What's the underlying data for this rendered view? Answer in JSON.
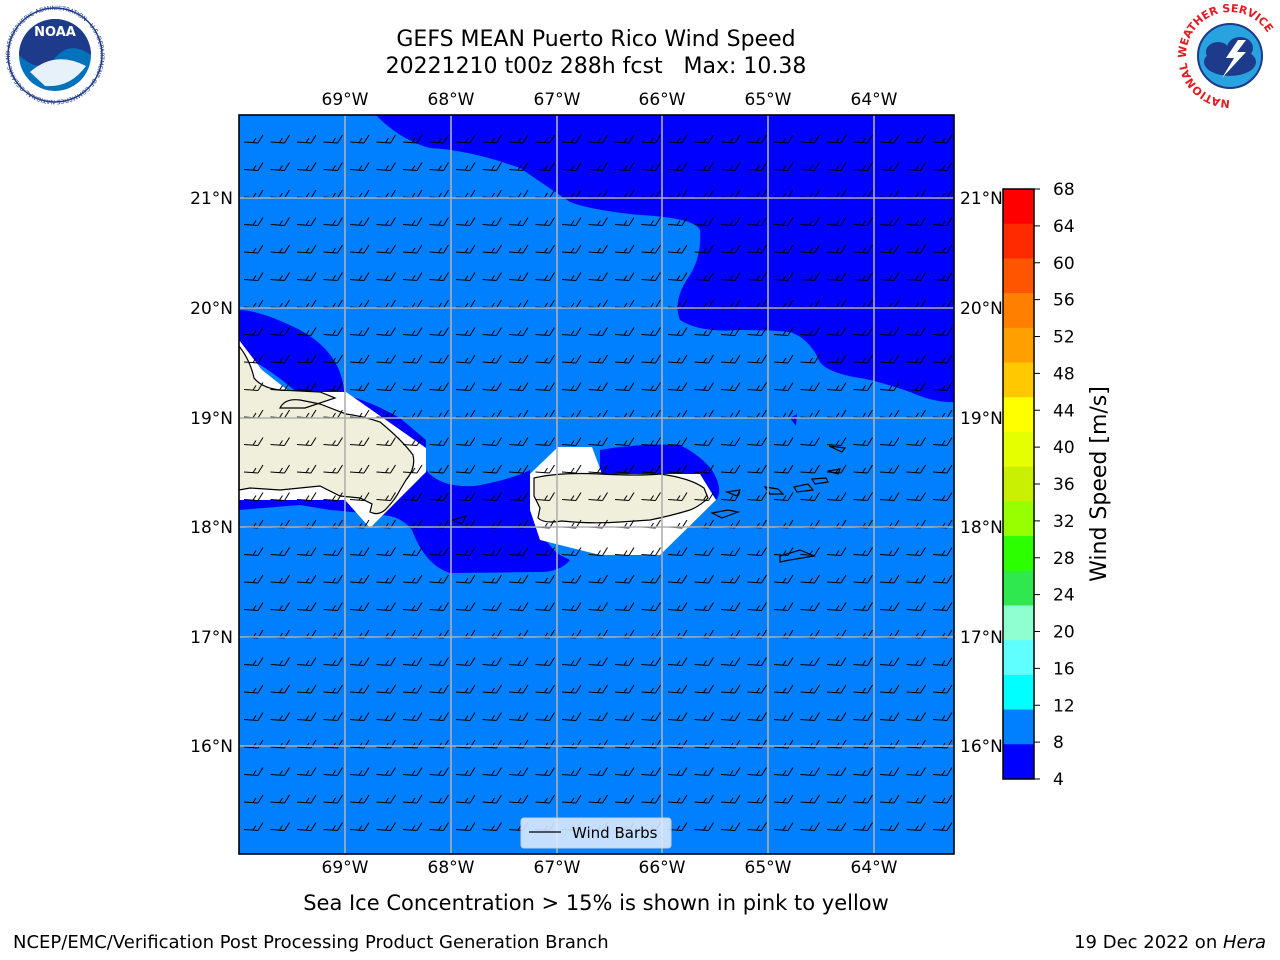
{
  "title": {
    "line1": "GEFS MEAN Puerto Rico Wind Speed",
    "line2": "20221210 t00z 288h fcst   Max: 10.38"
  },
  "map": {
    "lon_ticks": [
      "69°W",
      "68°W",
      "67°W",
      "66°W",
      "65°W",
      "64°W"
    ],
    "lat_ticks_left": [
      "21°N",
      "20°N",
      "19°N",
      "18°N",
      "17°N",
      "16°N"
    ],
    "lat_ticks_right": [
      "21°N",
      "20°N",
      "19°N",
      "18°N",
      "17°N",
      "16°N"
    ],
    "legend_label": "Wind Barbs",
    "colors": {
      "ocean_8_12": "#0080ff",
      "wind_4_8": "#0000ff",
      "land": "#efefdc",
      "grid": "#b0b0b0"
    }
  },
  "colorbar": {
    "label": "Wind Speed [m/s]",
    "ticks": [
      "68",
      "64",
      "60",
      "56",
      "52",
      "48",
      "44",
      "40",
      "36",
      "32",
      "28",
      "24",
      "20",
      "16",
      "12",
      "8",
      "4"
    ],
    "colors_top_to_bottom": [
      "#ff0000",
      "#ff2a00",
      "#ff5500",
      "#ff7f00",
      "#ffa000",
      "#ffc800",
      "#ffff00",
      "#e6ff00",
      "#c8f000",
      "#96ff00",
      "#2cff00",
      "#2ee84e",
      "#90ffd0",
      "#60ffff",
      "#00ffff",
      "#0080ff",
      "#0000ff"
    ]
  },
  "logos": {
    "noaa_text": "NOAA",
    "noaa_ring": "NATIONAL OCEANIC AND ATMOSPHERIC ADMINISTRATION · U.S. DEPARTMENT OF COMMERCE",
    "nws_ring": "NATIONAL WEATHER SERVICE"
  },
  "sea_ice_note": "Sea Ice Concentration > 15% is shown in pink to yellow",
  "footer": {
    "left": "NCEP/EMC/Verification Post Processing Product Generation Branch",
    "right_date": "19 Dec 2022 on ",
    "right_machine": "Hera"
  }
}
